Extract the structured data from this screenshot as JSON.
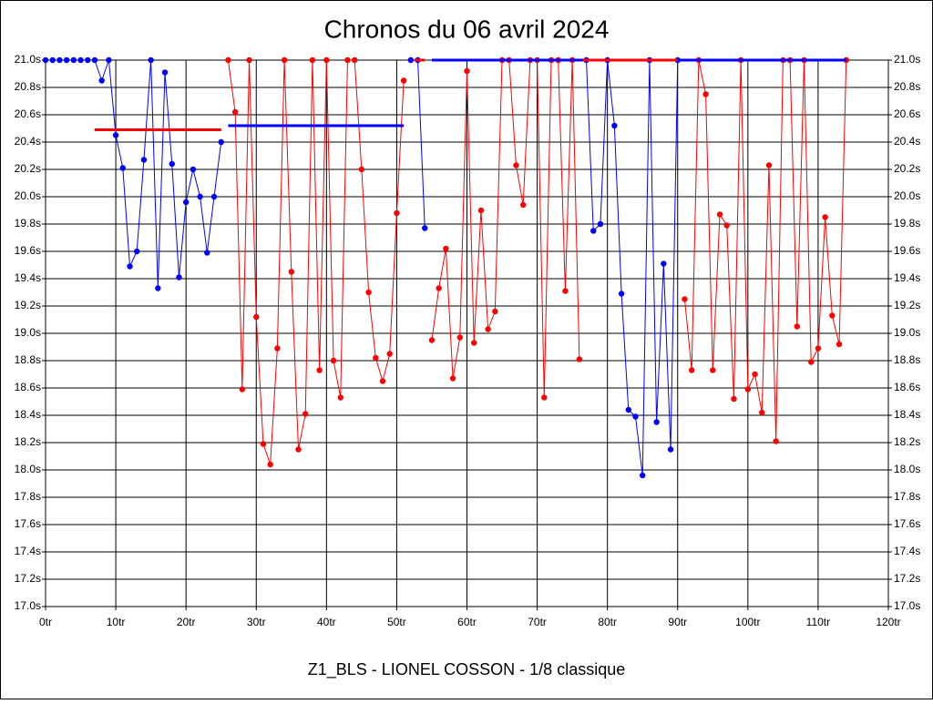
{
  "chart_data": {
    "type": "line",
    "title": "Chronos du 06 avril 2024",
    "footer": "Z1_BLS - LIONEL COSSON - 1/8 classique",
    "xlim": [
      0,
      120
    ],
    "xticks": [
      {
        "value": 0,
        "label": "0tr"
      },
      {
        "value": 10,
        "label": "10tr"
      },
      {
        "value": 20,
        "label": "20tr"
      },
      {
        "value": 30,
        "label": "30tr"
      },
      {
        "value": 40,
        "label": "40tr"
      },
      {
        "value": 50,
        "label": "50tr"
      },
      {
        "value": 60,
        "label": "60tr"
      },
      {
        "value": 70,
        "label": "70tr"
      },
      {
        "value": 80,
        "label": "80tr"
      },
      {
        "value": 90,
        "label": "90tr"
      },
      {
        "value": 100,
        "label": "100tr"
      },
      {
        "value": 110,
        "label": "110tr"
      },
      {
        "value": 120,
        "label": "120tr"
      }
    ],
    "ylim": [
      17.0,
      21.0
    ],
    "yticks": [
      {
        "value": 17.0,
        "label": "17.0s"
      },
      {
        "value": 17.2,
        "label": "17.2s"
      },
      {
        "value": 17.4,
        "label": "17.4s"
      },
      {
        "value": 17.6,
        "label": "17.6s"
      },
      {
        "value": 17.8,
        "label": "17.8s"
      },
      {
        "value": 18.0,
        "label": "18.0s"
      },
      {
        "value": 18.2,
        "label": "18.2s"
      },
      {
        "value": 18.4,
        "label": "18.4s"
      },
      {
        "value": 18.6,
        "label": "18.6s"
      },
      {
        "value": 18.8,
        "label": "18.8s"
      },
      {
        "value": 19.0,
        "label": "19.0s"
      },
      {
        "value": 19.2,
        "label": "19.2s"
      },
      {
        "value": 19.4,
        "label": "19.4s"
      },
      {
        "value": 19.6,
        "label": "19.6s"
      },
      {
        "value": 19.8,
        "label": "19.8s"
      },
      {
        "value": 20.0,
        "label": "20.0s"
      },
      {
        "value": 20.2,
        "label": "20.2s"
      },
      {
        "value": 20.4,
        "label": "20.4s"
      },
      {
        "value": 20.6,
        "label": "20.6s"
      },
      {
        "value": 20.8,
        "label": "20.8s"
      },
      {
        "value": 21.0,
        "label": "21.0s"
      }
    ],
    "grid": true,
    "series": [
      {
        "color": "#0000ff",
        "x": [
          0,
          1,
          2,
          3,
          4,
          5,
          6,
          7,
          8,
          9,
          10,
          11,
          12,
          13,
          14,
          15,
          16,
          17,
          18,
          19,
          20,
          21,
          22,
          23,
          24,
          25
        ],
        "values": [
          21.0,
          21.0,
          21.0,
          21.0,
          21.0,
          21.0,
          21.0,
          21.0,
          20.85,
          21.0,
          20.45,
          20.21,
          19.49,
          19.6,
          20.27,
          21.0,
          19.33,
          20.91,
          20.24,
          19.41,
          19.96,
          20.2,
          20.0,
          19.59,
          20.0,
          20.4
        ]
      },
      {
        "color": "#ff0000",
        "x": [
          26,
          27,
          28,
          29,
          30,
          31,
          32,
          33,
          34,
          35,
          36,
          37,
          38,
          39,
          40,
          41,
          42,
          43,
          44,
          45,
          46,
          47,
          48,
          49,
          50,
          51
        ],
        "values": [
          21.0,
          20.62,
          18.59,
          21.0,
          19.12,
          18.19,
          18.04,
          18.89,
          21.0,
          19.45,
          18.15,
          18.41,
          21.0,
          18.73,
          21.0,
          18.8,
          18.53,
          21.0,
          21.0,
          20.2,
          19.3,
          18.82,
          18.65,
          18.85,
          19.88,
          20.85
        ]
      },
      {
        "color": "#0000ff",
        "x": [
          52,
          53,
          54
        ],
        "values": [
          21.0,
          21.0,
          19.77
        ]
      },
      {
        "color": "#ff0000",
        "x": [
          55,
          56,
          57,
          58,
          59,
          60,
          61,
          62,
          63,
          64,
          65,
          66,
          67,
          68,
          69,
          70,
          71,
          72,
          73,
          74,
          75,
          76
        ],
        "values": [
          18.95,
          19.33,
          19.62,
          18.67,
          18.97,
          20.92,
          18.93,
          19.9,
          19.03,
          19.16,
          21.0,
          21.0,
          20.23,
          19.94,
          21.0,
          21.0,
          18.53,
          21.0,
          21.0,
          19.31,
          21.0,
          18.81
        ]
      },
      {
        "color": "#0000ff",
        "x": [
          77,
          78,
          79,
          80,
          81,
          82,
          83,
          84,
          85,
          86,
          87,
          88,
          89,
          90
        ],
        "values": [
          21.0,
          19.75,
          19.8,
          21.0,
          20.52,
          19.29,
          18.44,
          18.39,
          17.96,
          21.0,
          18.35,
          19.51,
          18.15,
          21.0
        ]
      },
      {
        "color": "#ff0000",
        "x": [
          91,
          92,
          93,
          94,
          95,
          96,
          97,
          98,
          99,
          100,
          101,
          102,
          103,
          104,
          105,
          106,
          107,
          108,
          109,
          110,
          111,
          112,
          113,
          114
        ],
        "values": [
          19.25,
          18.73,
          21.0,
          20.75,
          18.73,
          19.87,
          19.79,
          18.52,
          21.0,
          18.59,
          18.7,
          18.42,
          20.23,
          18.21,
          21.0,
          21.0,
          19.05,
          21.0,
          18.79,
          18.89,
          19.85,
          19.13,
          18.92,
          21.0
        ]
      }
    ],
    "reference_lines": [
      {
        "color": "#ff0000",
        "x": [
          7,
          25
        ],
        "y": 20.49
      },
      {
        "color": "#0000ff",
        "x": [
          26,
          51
        ],
        "y": 20.52
      },
      {
        "color": "#ff0000",
        "x": [
          52.5,
          54
        ],
        "y": 21.0
      },
      {
        "color": "#0000ff",
        "x": [
          55,
          114
        ],
        "y": 21.0
      },
      {
        "color": "#ff0000",
        "x": [
          76.5,
          90
        ],
        "y": 21.0
      }
    ]
  }
}
